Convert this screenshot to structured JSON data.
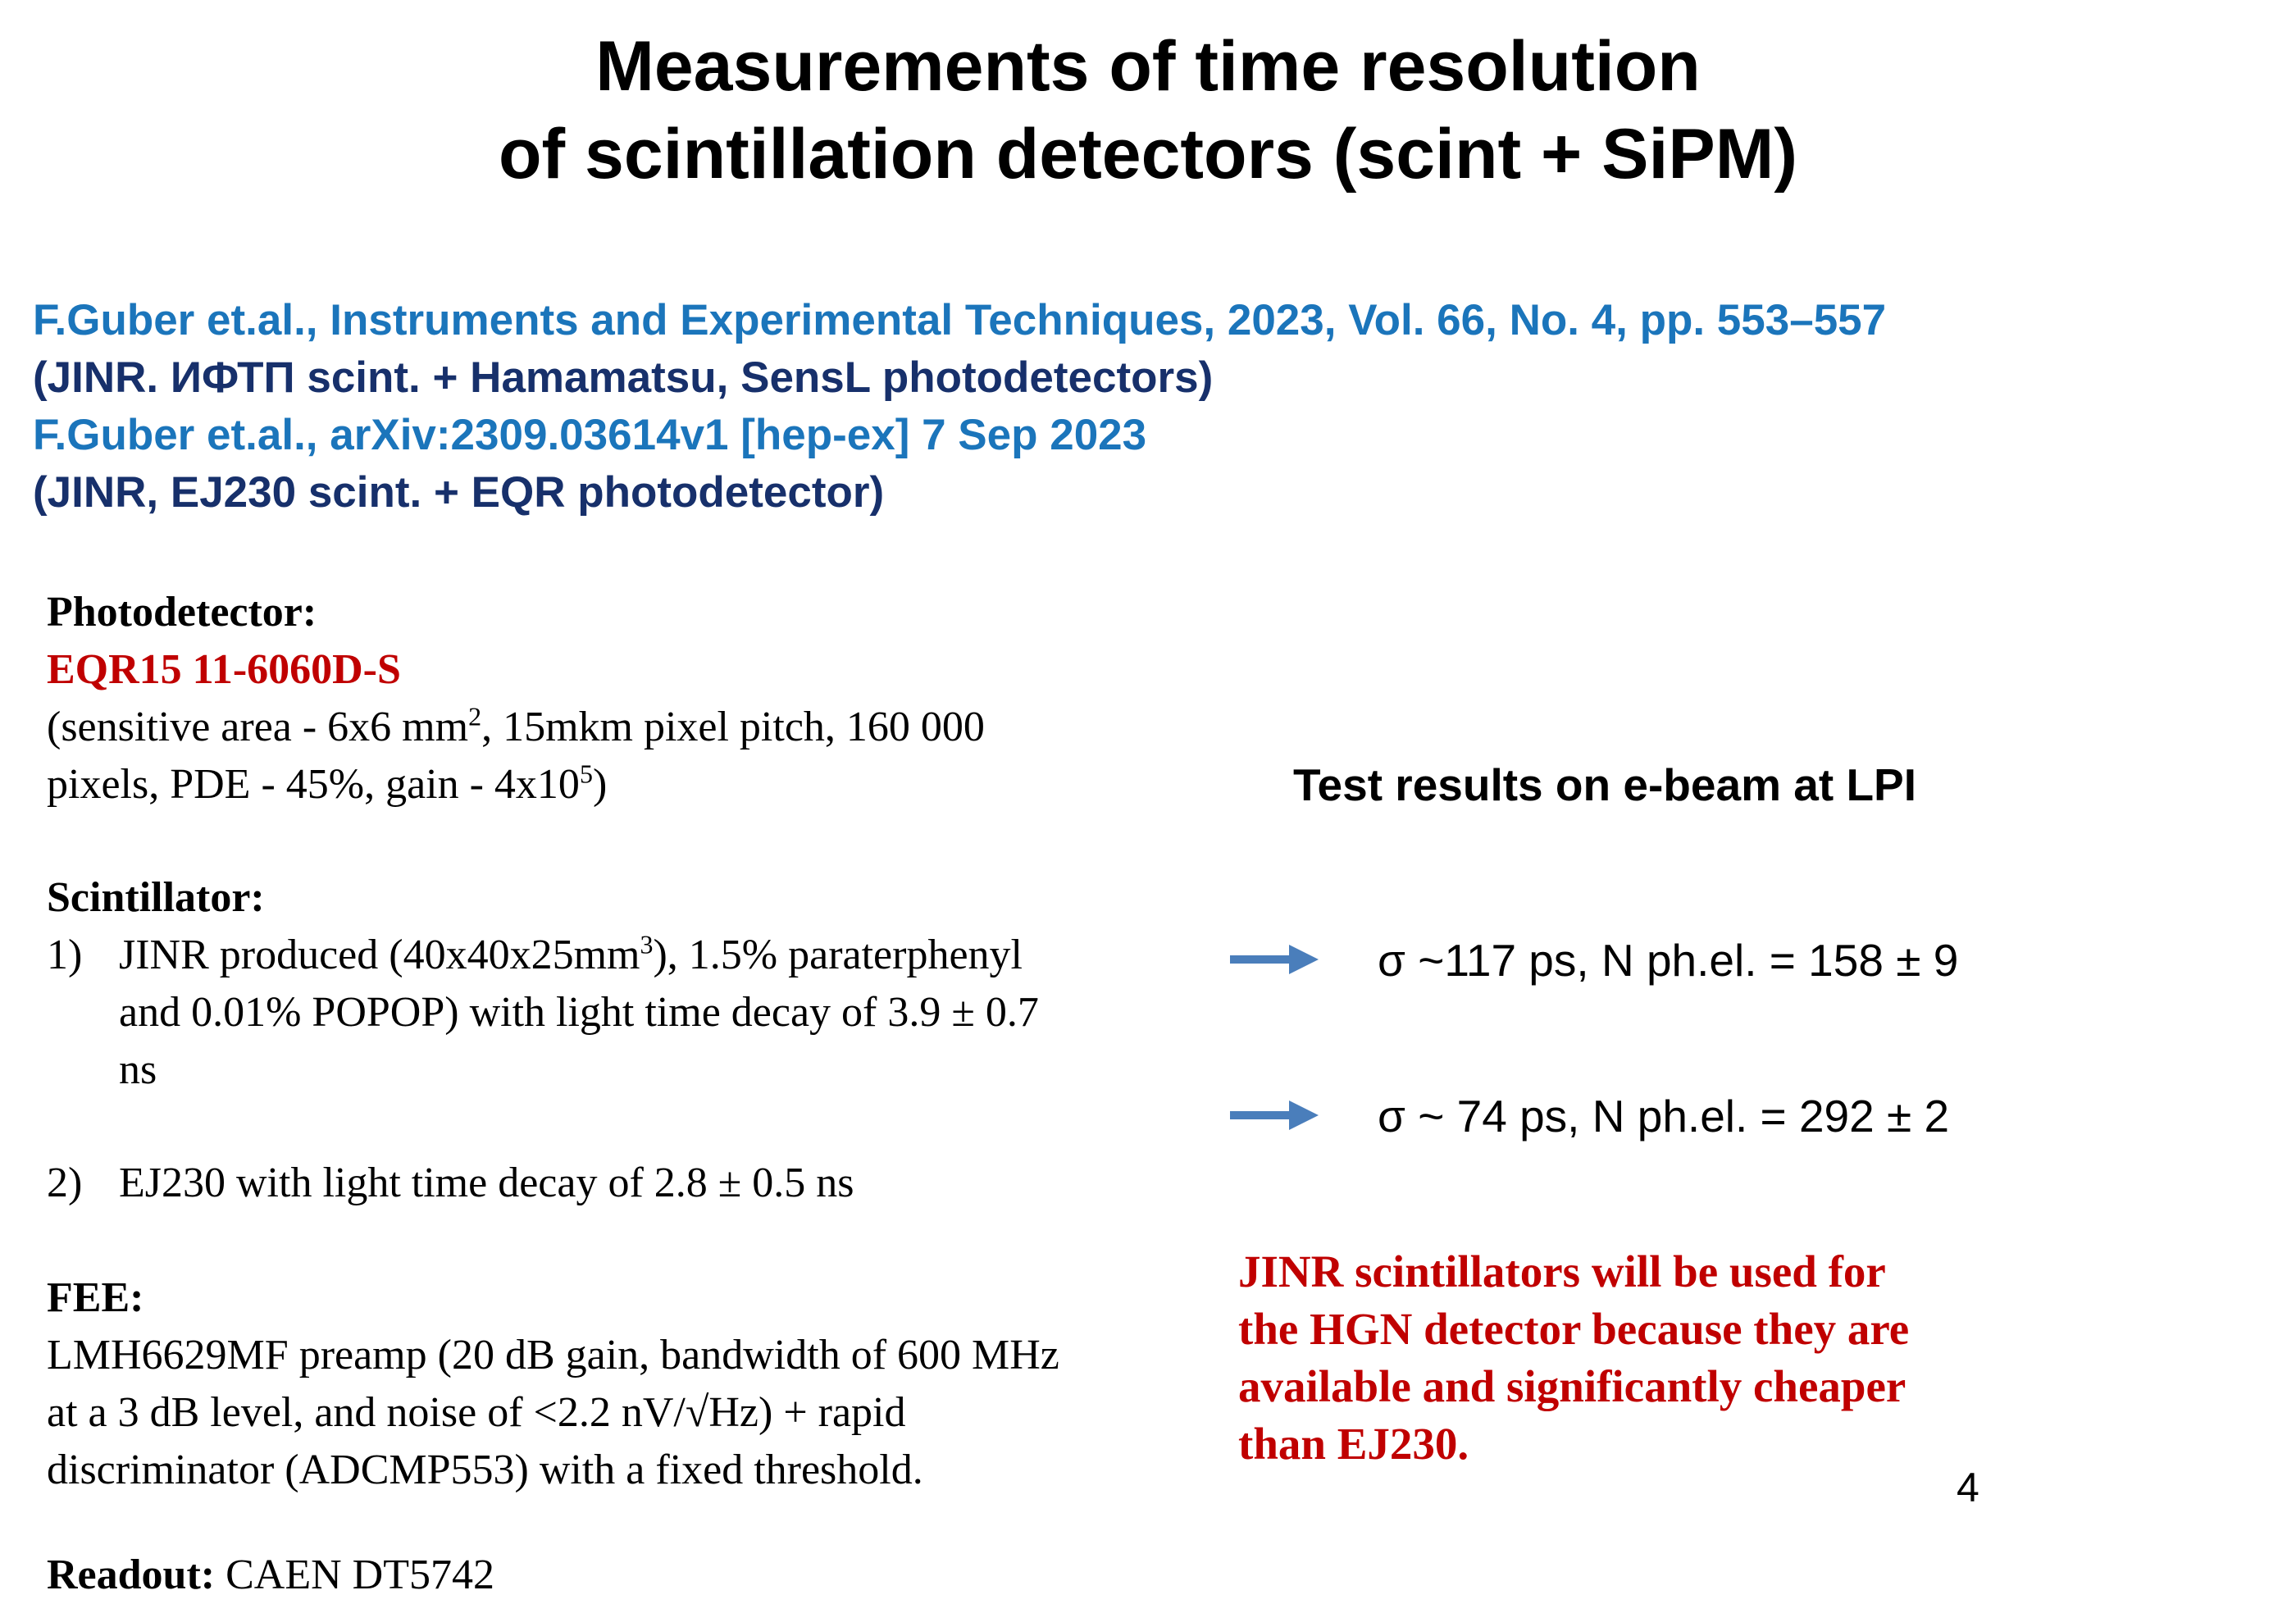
{
  "title": {
    "line1": "Measurements of time resolution",
    "line2": "of scintillation detectors (scint + SiPM)"
  },
  "references": [
    "F.Guber et.al., Instruments and Experimental Techniques, 2023, Vol. 66, No. 4, pp. 553–557",
    "(JINR. ИФТП scint. + Hamamatsu, SensL photodetectors)",
    "F.Guber et.al., arXiv:2309.03614v1 [hep-ex] 7 Sep 2023",
    "(JINR, EJ230 scint. + EQR photodetector)"
  ],
  "photodetector": {
    "heading": "Photodetector:",
    "model": "EQR15 11-6060D-S",
    "desc_line1_pre": "(sensitive area - 6x6 mm",
    "desc_line1_sup": "2",
    "desc_line1_post": ", 15mkm pixel pitch, 160 000",
    "desc_line2_pre": "pixels, PDE - 45%, gain - 4x10",
    "desc_line2_sup": "5",
    "desc_line2_post": ")"
  },
  "scintillator": {
    "heading": "Scintillator:",
    "item1_num": "1)",
    "item1_line1_pre": "JINR produced (40x40x25mm",
    "item1_line1_sup": "3",
    "item1_line1_post": "), 1.5% paraterphenyl",
    "item1_line2": "and 0.01% POPOP) with light time decay of 3.9 ± 0.7",
    "item1_line3": "ns",
    "item2_num": "2)",
    "item2_text": "EJ230 with light time decay of 2.8 ± 0.5 ns"
  },
  "fee": {
    "heading": "FEE:",
    "line1": "LMH6629MF preamp (20 dB gain, bandwidth of 600 MHz",
    "line2": "at a 3 dB level, and noise of <2.2 nV/√Hz) + rapid",
    "line3": "discriminator (ADCMP553) with a fixed threshold."
  },
  "readout": {
    "heading": "Readout:",
    "text": " CAEN DT5742"
  },
  "test_results": {
    "title": "Test results on e-beam at LPI",
    "result1": "σ ~117 ps, N ph.el. = 158 ± 9",
    "result2": "σ  ~ 74 ps, N ph.el. = 292 ± 2"
  },
  "conclusion": {
    "line1": " JINR scintillators will be used for",
    "line2": "the HGN detector because they are",
    "line3": "available and significantly cheaper",
    "line4": "than EJ230."
  },
  "page_number": "4",
  "colors": {
    "reference_blue": "#1b75bb",
    "reference_navy": "#17306b",
    "accent_red": "#c00000",
    "arrow_blue": "#4a7ebb"
  }
}
